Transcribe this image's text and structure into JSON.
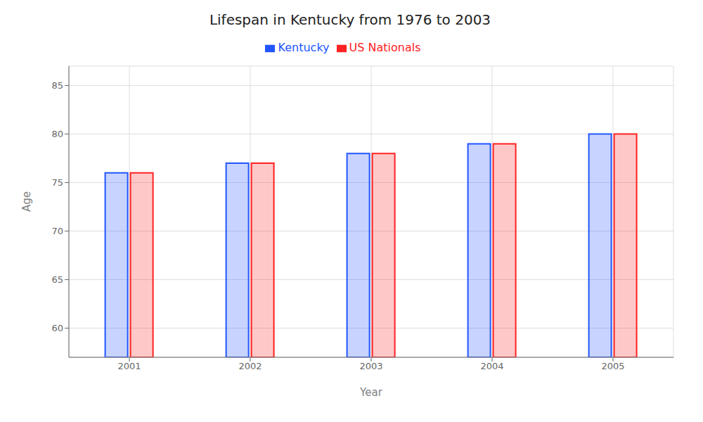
{
  "chart_data": {
    "type": "bar",
    "title": "Lifespan in Kentucky from 1976 to 2003",
    "xlabel": "Year",
    "ylabel": "Age",
    "categories": [
      "2001",
      "2002",
      "2003",
      "2004",
      "2005"
    ],
    "series": [
      {
        "name": "Kentucky",
        "color": "#2255ff",
        "values": [
          76,
          77,
          78,
          79,
          80
        ]
      },
      {
        "name": "US Nationals",
        "color": "#ff2222",
        "values": [
          76,
          77,
          78,
          79,
          80
        ]
      }
    ],
    "ylim": [
      57,
      87
    ],
    "yticks": [
      60,
      65,
      70,
      75,
      80,
      85
    ],
    "grid": true,
    "legend": "top"
  }
}
